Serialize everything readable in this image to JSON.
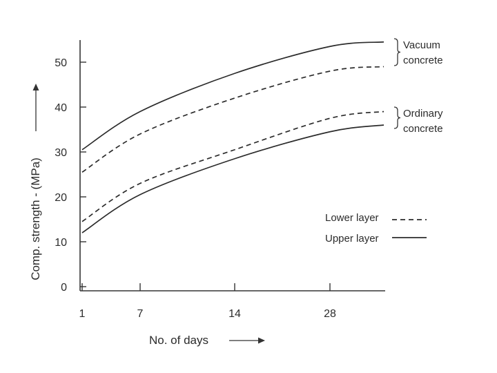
{
  "chart_data": {
    "type": "line",
    "title": "",
    "xlabel": "No. of days",
    "ylabel": "Comp. strength - (MPa)",
    "x_ticks": [
      "1",
      "7",
      "14",
      "28"
    ],
    "y_ticks": [
      "0",
      "10",
      "20",
      "30",
      "40",
      "50"
    ],
    "ylim": [
      0,
      55
    ],
    "grid": false,
    "legend_position": "right",
    "legend": [
      {
        "label": "Lower layer",
        "style": "dashed"
      },
      {
        "label": "Upper layer",
        "style": "solid"
      }
    ],
    "group_labels": [
      {
        "lines": [
          "Vacuum",
          "concrete"
        ]
      },
      {
        "lines": [
          "Ordinary",
          "concrete"
        ]
      }
    ],
    "series": [
      {
        "group": "Vacuum concrete",
        "layer": "Upper layer",
        "style": "solid",
        "points": [
          [
            "1",
            30.5
          ],
          [
            "7",
            39
          ],
          [
            "14",
            47.5
          ],
          [
            "28",
            53.5
          ],
          [
            "end",
            54.5
          ]
        ]
      },
      {
        "group": "Vacuum concrete",
        "layer": "Lower layer",
        "style": "dashed",
        "points": [
          [
            "1",
            25.5
          ],
          [
            "7",
            34
          ],
          [
            "14",
            42
          ],
          [
            "28",
            48
          ],
          [
            "end",
            49
          ]
        ]
      },
      {
        "group": "Ordinary concrete",
        "layer": "Lower layer",
        "style": "dashed",
        "points": [
          [
            "1",
            14.5
          ],
          [
            "7",
            23
          ],
          [
            "14",
            30.5
          ],
          [
            "28",
            37.5
          ],
          [
            "end",
            39
          ]
        ]
      },
      {
        "group": "Ordinary concrete",
        "layer": "Upper layer",
        "style": "solid",
        "points": [
          [
            "1",
            12
          ],
          [
            "7",
            20.5
          ],
          [
            "14",
            28.5
          ],
          [
            "28",
            34.5
          ],
          [
            "end",
            36
          ]
        ]
      }
    ]
  }
}
